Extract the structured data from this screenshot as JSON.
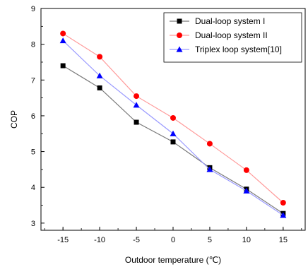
{
  "chart_data": {
    "type": "line",
    "title": "",
    "xlabel": "Outdoor temperature (℃)",
    "ylabel": "COP",
    "x": [
      -15,
      -10,
      -5,
      0,
      5,
      10,
      15
    ],
    "x_ticks": [
      "-15",
      "-10",
      "-5",
      "0",
      "5",
      "10",
      "15"
    ],
    "xlim": [
      -18,
      18
    ],
    "ylim": [
      2.8,
      9
    ],
    "y_ticks": [
      "3",
      "4",
      "5",
      "6",
      "7",
      "8",
      "9"
    ],
    "grid": false,
    "legend_position": "top-right",
    "series": [
      {
        "name": "Dual-loop system I",
        "color": "#000000",
        "marker": "square",
        "values": [
          7.4,
          6.78,
          5.82,
          5.27,
          4.55,
          3.95,
          3.27
        ]
      },
      {
        "name": "Dual-loop system II",
        "color": "#ff0000",
        "marker": "circle",
        "values": [
          8.3,
          7.65,
          6.55,
          5.94,
          5.22,
          4.48,
          3.57
        ]
      },
      {
        "name": "Triplex loop system[10]",
        "color": "#0000ff",
        "marker": "triangle",
        "values": [
          8.1,
          7.12,
          6.3,
          5.5,
          4.5,
          3.9,
          3.22
        ]
      }
    ]
  }
}
